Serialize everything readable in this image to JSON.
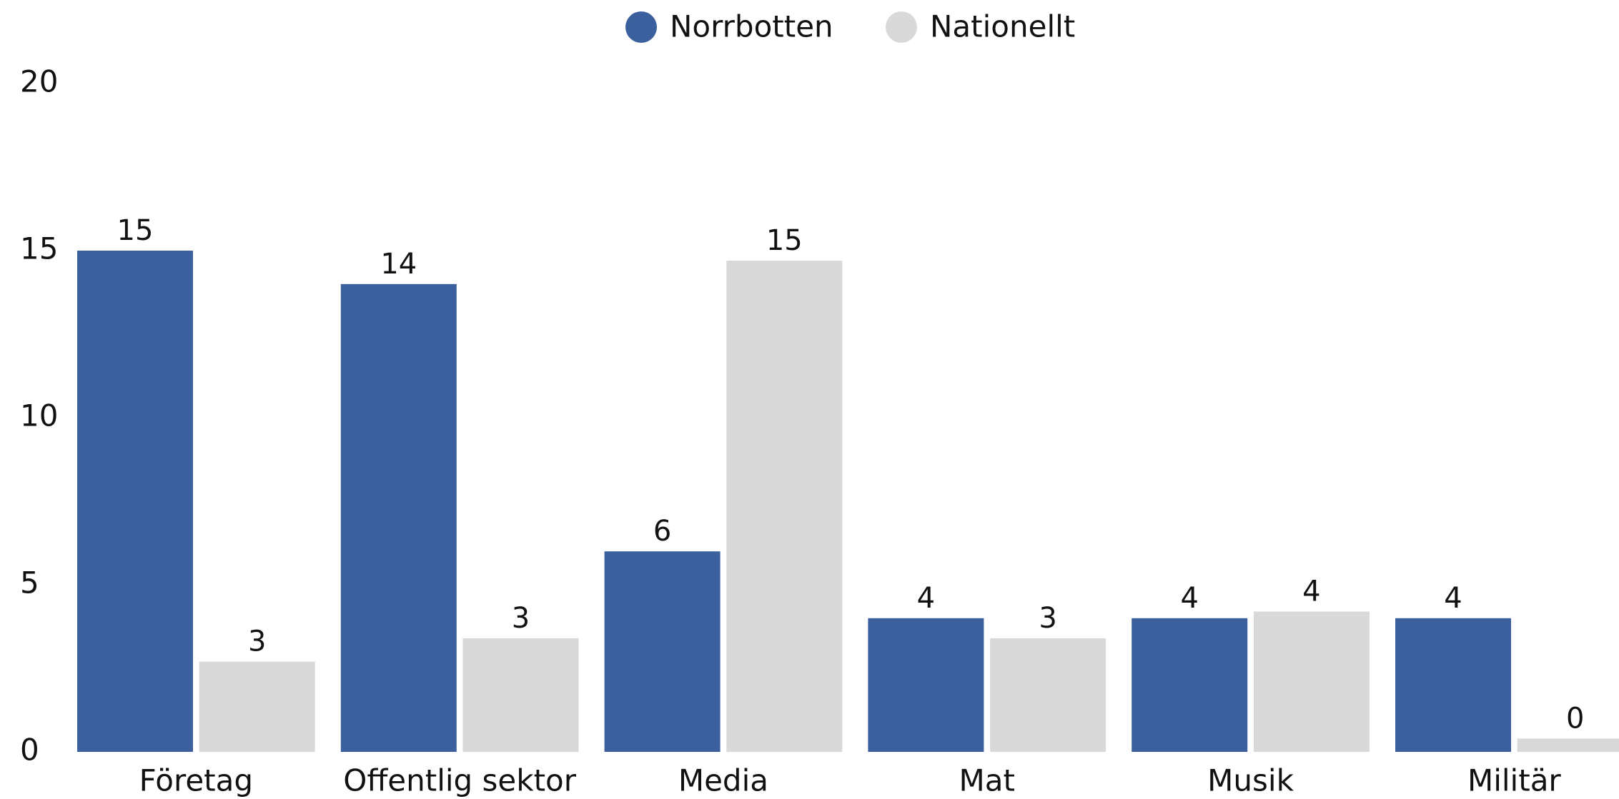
{
  "chart_data": {
    "type": "bar",
    "categories": [
      "Företag",
      "Offentlig sektor",
      "Media",
      "Mat",
      "Musik",
      "Militär"
    ],
    "series": [
      {
        "name": "Norrbotten",
        "color": "#3b609d",
        "values": [
          15,
          14,
          6,
          4,
          4,
          4
        ]
      },
      {
        "name": "Nationellt",
        "color": "#d9d9d9",
        "values": [
          2.7,
          3.4,
          14.7,
          3.4,
          4.2,
          0.4
        ],
        "value_labels": [
          "3",
          "3",
          "15",
          "3",
          "4",
          "0"
        ]
      }
    ],
    "ylim": [
      0,
      20
    ],
    "yticks": [
      0,
      5,
      10,
      15,
      20
    ],
    "grid": false,
    "legend": "top"
  }
}
